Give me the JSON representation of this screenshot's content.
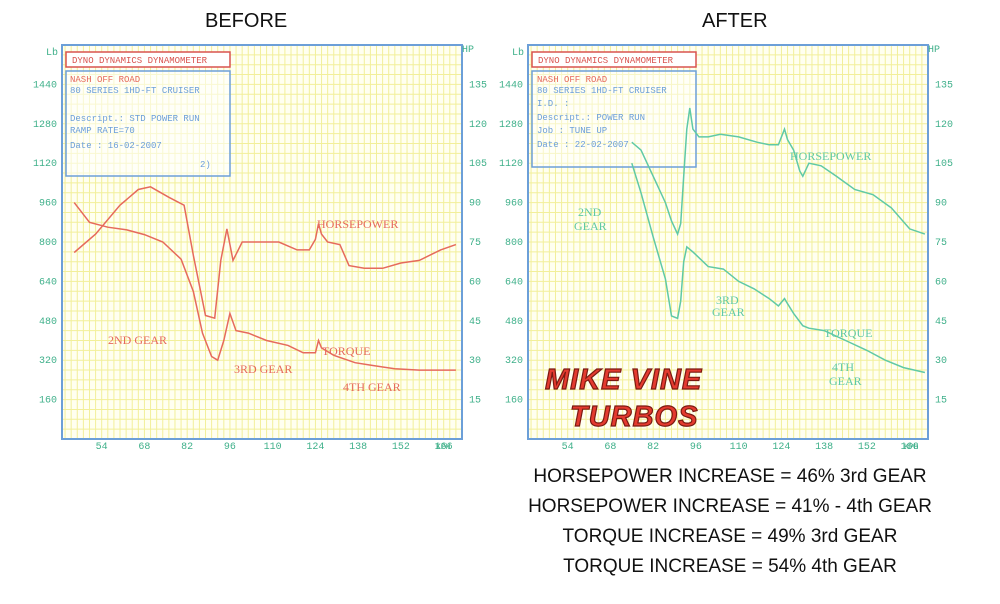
{
  "headings": {
    "before": "BEFORE",
    "after": "AFTER"
  },
  "axis_units": {
    "left": "Lb",
    "right": "HP",
    "x": "KPH"
  },
  "colors": {
    "grid": "#f2ef9a",
    "frame": "#6c9fd8",
    "ticks": "#3fb08a",
    "before_curve": "#e66a5c",
    "after_curve": "#5fc9a6",
    "logo_fill": "#e43a2f",
    "logo_stroke": "#7a1a12",
    "header_box": "#d9534f"
  },
  "chart_data": [
    {
      "type": "line",
      "title": "BEFORE",
      "header_box": "DYNO DYNAMICS DYNAMOMETER",
      "info_box": {
        "line1": "NASH OFF ROAD",
        "line2": "80 SERIES 1HD-FT CRUISER",
        "line3": "Descript.: STD POWER RUN",
        "line4": "RAMP RATE=70",
        "line5": "Date      : 16-02-2007",
        "line6": "2)"
      },
      "x_ticks": [
        "54",
        "68",
        "82",
        "96",
        "110",
        "124",
        "138",
        "152",
        "166"
      ],
      "left_ticks": [
        "1440",
        "1280",
        "1120",
        "960",
        "800",
        "640",
        "480",
        "320",
        "160"
      ],
      "right_ticks": [
        "135",
        "120",
        "105",
        "90",
        "75",
        "60",
        "45",
        "30",
        "15"
      ],
      "xlim": [
        41,
        172
      ],
      "left_ylim": [
        0,
        1600
      ],
      "right_ylim": [
        0,
        150
      ],
      "labels": {
        "horsepower": "HORSEPOWER",
        "torque": "TORQUE",
        "gear2": "2ND GEAR",
        "gear3": "3RD GEAR",
        "gear4": "4TH GEAR"
      },
      "series": [
        {
          "name": "HORSEPOWER",
          "axis": "right",
          "points": [
            [
              45,
              71
            ],
            [
              52,
              78
            ],
            [
              60,
              89
            ],
            [
              66,
              95
            ],
            [
              70,
              96
            ],
            [
              76,
              92
            ],
            [
              81,
              89
            ],
            [
              84,
              70
            ],
            [
              88,
              47
            ],
            [
              91,
              46
            ],
            [
              93,
              68
            ],
            [
              95,
              80
            ],
            [
              97,
              68
            ],
            [
              100,
              75
            ],
            [
              105,
              75
            ],
            [
              112,
              75
            ],
            [
              118,
              72
            ],
            [
              122,
              72
            ],
            [
              124,
              76
            ],
            [
              125,
              82
            ],
            [
              126,
              78
            ],
            [
              128,
              75
            ],
            [
              132,
              74
            ],
            [
              135,
              66
            ],
            [
              140,
              65
            ],
            [
              146,
              65
            ],
            [
              152,
              67
            ],
            [
              158,
              68
            ],
            [
              165,
              72
            ],
            [
              170,
              74
            ]
          ]
        },
        {
          "name": "TORQUE",
          "axis": "left",
          "points": [
            [
              45,
              960
            ],
            [
              50,
              880
            ],
            [
              56,
              860
            ],
            [
              62,
              850
            ],
            [
              68,
              830
            ],
            [
              74,
              800
            ],
            [
              80,
              730
            ],
            [
              84,
              600
            ],
            [
              87,
              430
            ],
            [
              90,
              335
            ],
            [
              92,
              320
            ],
            [
              94,
              400
            ],
            [
              96,
              510
            ],
            [
              98,
              440
            ],
            [
              102,
              430
            ],
            [
              108,
              400
            ],
            [
              115,
              380
            ],
            [
              120,
              350
            ],
            [
              124,
              350
            ],
            [
              125,
              400
            ],
            [
              126,
              370
            ],
            [
              130,
              340
            ],
            [
              137,
              310
            ],
            [
              142,
              300
            ],
            [
              150,
              285
            ],
            [
              158,
              280
            ],
            [
              165,
              280
            ],
            [
              170,
              280
            ]
          ]
        }
      ]
    },
    {
      "type": "line",
      "title": "AFTER",
      "header_box": "DYNO DYNAMICS DYNAMOMETER",
      "info_box": {
        "line1": "NASH OFF ROAD",
        "line2": "80 SERIES 1HD-FT CRUISER",
        "line3": "I.D.      :",
        "line4": "Descript.: POWER RUN",
        "line5": "Job       : TUNE UP",
        "line6": "Date      : 22-02-2007"
      },
      "x_ticks": [
        "54",
        "68",
        "82",
        "96",
        "110",
        "124",
        "138",
        "152",
        "166"
      ],
      "left_ticks": [
        "1440",
        "1280",
        "1120",
        "960",
        "800",
        "640",
        "480",
        "320",
        "160"
      ],
      "right_ticks": [
        "135",
        "120",
        "105",
        "90",
        "75",
        "60",
        "45",
        "30",
        "15"
      ],
      "xlim": [
        41,
        172
      ],
      "left_ylim": [
        0,
        1600
      ],
      "right_ylim": [
        0,
        150
      ],
      "labels": {
        "horsepower": "HORSEPOWER",
        "torque": "TORQUE",
        "gear2a": "2ND",
        "gear2b": "GEAR",
        "gear3a": "3RD",
        "gear3b": "GEAR",
        "gear4a": "4TH",
        "gear4b": "GEAR"
      },
      "logo": {
        "line1": "MIKE VINE",
        "line2": "TURBOS"
      },
      "series": [
        {
          "name": "HORSEPOWER",
          "axis": "right",
          "points": [
            [
              75,
              113
            ],
            [
              78,
              110
            ],
            [
              82,
              100
            ],
            [
              86,
              90
            ],
            [
              88,
              83
            ],
            [
              90,
              78
            ],
            [
              91,
              82
            ],
            [
              92,
              100
            ],
            [
              93,
              118
            ],
            [
              94,
              126
            ],
            [
              95,
              118
            ],
            [
              97,
              115
            ],
            [
              100,
              115
            ],
            [
              104,
              116
            ],
            [
              110,
              115
            ],
            [
              116,
              113
            ],
            [
              120,
              112
            ],
            [
              123,
              112
            ],
            [
              125,
              118
            ],
            [
              126,
              114
            ],
            [
              128,
              110
            ],
            [
              130,
              102
            ],
            [
              131,
              100
            ],
            [
              133,
              105
            ],
            [
              137,
              104
            ],
            [
              142,
              100
            ],
            [
              148,
              95
            ],
            [
              154,
              93
            ],
            [
              160,
              88
            ],
            [
              166,
              80
            ],
            [
              171,
              78
            ]
          ]
        },
        {
          "name": "TORQUE",
          "axis": "left",
          "points": [
            [
              75,
              1120
            ],
            [
              78,
              1000
            ],
            [
              82,
              820
            ],
            [
              86,
              650
            ],
            [
              88,
              500
            ],
            [
              90,
              490
            ],
            [
              91,
              560
            ],
            [
              92,
              720
            ],
            [
              93,
              780
            ],
            [
              95,
              760
            ],
            [
              100,
              700
            ],
            [
              105,
              690
            ],
            [
              110,
              640
            ],
            [
              115,
              610
            ],
            [
              120,
              570
            ],
            [
              123,
              540
            ],
            [
              125,
              570
            ],
            [
              126,
              550
            ],
            [
              128,
              510
            ],
            [
              131,
              460
            ],
            [
              133,
              450
            ],
            [
              138,
              440
            ],
            [
              145,
              400
            ],
            [
              152,
              360
            ],
            [
              158,
              320
            ],
            [
              164,
              290
            ],
            [
              171,
              270
            ]
          ]
        }
      ]
    }
  ],
  "stats": {
    "line1": "HORSEPOWER INCREASE = 46% 3rd GEAR",
    "line2": "HORSEPOWER INCREASE = 41% - 4th GEAR",
    "line3": "TORQUE INCREASE = 49% 3rd GEAR",
    "line4": "TORQUE INCREASE = 54% 4th GEAR"
  }
}
